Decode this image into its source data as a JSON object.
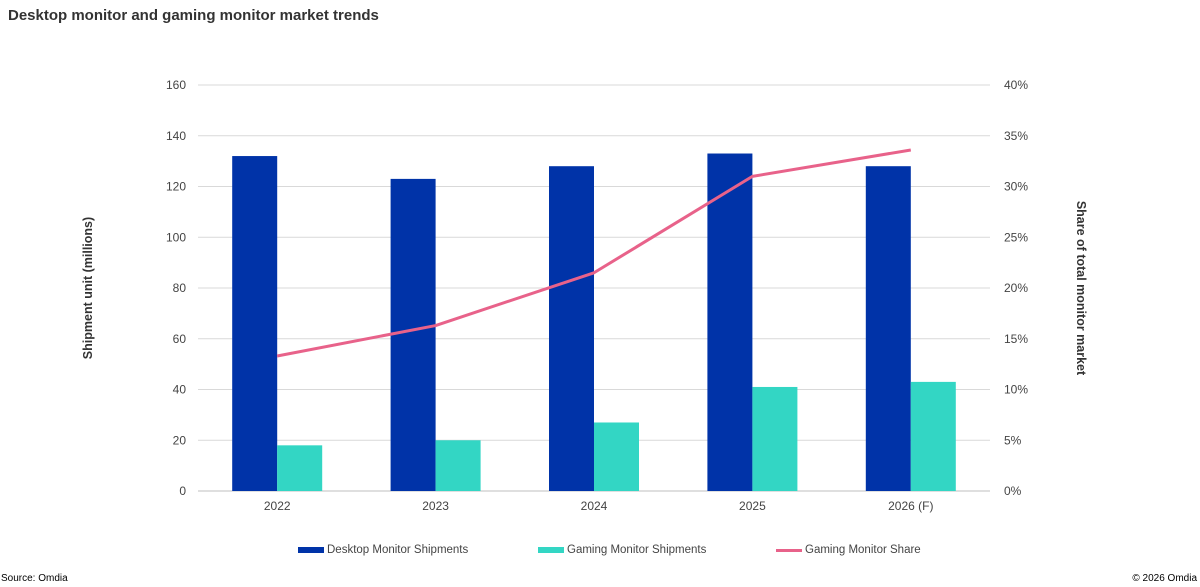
{
  "title": "Desktop monitor and gaming monitor market trends",
  "footer": {
    "source": "Source: Omdia",
    "copyright": "© 2026 Omdia"
  },
  "chart_data": {
    "type": "bar",
    "categories": [
      "2022",
      "2023",
      "2024",
      "2025",
      "2026 (F)"
    ],
    "series": [
      {
        "name": "Desktop Monitor Shipments",
        "type": "bar",
        "axis": "left",
        "color": "#0033a8",
        "values": [
          132,
          123,
          128,
          133,
          128
        ]
      },
      {
        "name": "Gaming Monitor Shipments",
        "type": "bar",
        "axis": "left",
        "color": "#33d6c4",
        "values": [
          18,
          20,
          27,
          41,
          43
        ]
      },
      {
        "name": "Gaming Monitor Share",
        "type": "line",
        "axis": "right",
        "color": "#e8628a",
        "values": [
          13.3,
          16.3,
          21.5,
          31.0,
          33.6
        ]
      }
    ],
    "ylabel_left": "Shipment unit (millions)",
    "ylabel_right": "Share of total monitor market",
    "ylim_left": [
      0,
      160
    ],
    "yticks_left": [
      "0",
      "20",
      "40",
      "60",
      "80",
      "100",
      "120",
      "140",
      "160"
    ],
    "ylim_right": [
      0,
      40
    ],
    "yticks_right": [
      "0%",
      "5%",
      "10%",
      "15%",
      "20%",
      "25%",
      "30%",
      "35%",
      "40%"
    ],
    "grid": true,
    "legend_position": "bottom"
  }
}
